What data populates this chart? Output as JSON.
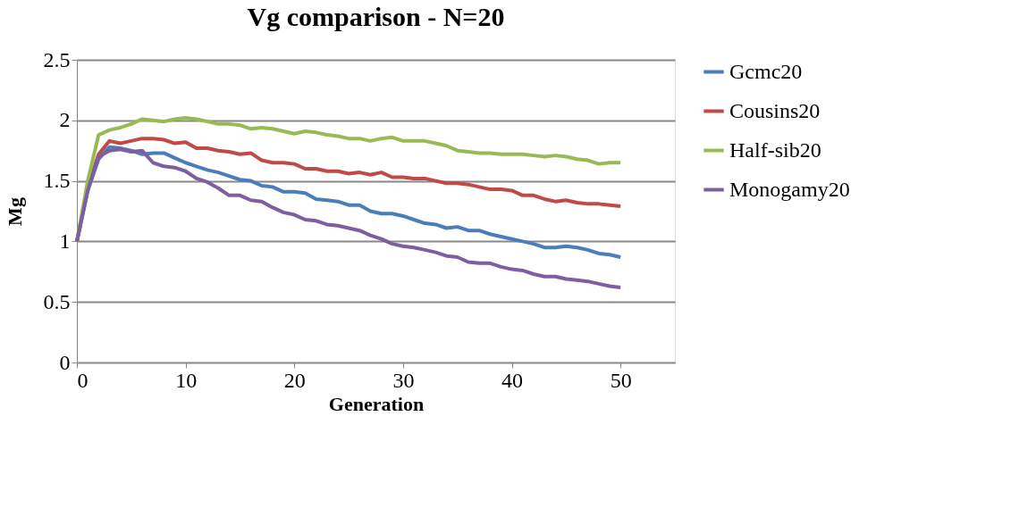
{
  "chart_data": {
    "type": "line",
    "title": "Vg comparison - N=20",
    "xlabel": "Generation",
    "ylabel": "Mg",
    "x": [
      0,
      1,
      2,
      3,
      4,
      5,
      6,
      7,
      8,
      9,
      10,
      11,
      12,
      13,
      14,
      15,
      16,
      17,
      18,
      19,
      20,
      21,
      22,
      23,
      24,
      25,
      26,
      27,
      28,
      29,
      30,
      31,
      32,
      33,
      34,
      35,
      36,
      37,
      38,
      39,
      40,
      41,
      42,
      43,
      44,
      45,
      46,
      47,
      48,
      49,
      50
    ],
    "xlim": [
      0,
      55
    ],
    "xticks": [
      0,
      10,
      20,
      30,
      40,
      50
    ],
    "ylim": [
      0,
      2.5
    ],
    "yticks": [
      0,
      0.5,
      1,
      1.5,
      2,
      2.5
    ],
    "grid": "y",
    "legend": "right",
    "line_style": "solid",
    "marker": "none",
    "series": [
      {
        "name": "Gcmc20",
        "color": "#4a7ebb",
        "values": [
          1,
          1.42,
          1.68,
          1.78,
          1.77,
          1.75,
          1.72,
          1.73,
          1.73,
          1.69,
          1.65,
          1.62,
          1.59,
          1.57,
          1.54,
          1.51,
          1.5,
          1.46,
          1.45,
          1.41,
          1.41,
          1.4,
          1.35,
          1.34,
          1.33,
          1.3,
          1.3,
          1.25,
          1.23,
          1.23,
          1.21,
          1.18,
          1.15,
          1.14,
          1.11,
          1.12,
          1.09,
          1.09,
          1.06,
          1.04,
          1.02,
          1.0,
          0.98,
          0.95,
          0.95,
          0.96,
          0.95,
          0.93,
          0.9,
          0.89,
          0.87
        ]
      },
      {
        "name": "Cousins20",
        "color": "#be4b48",
        "values": [
          1,
          1.45,
          1.72,
          1.83,
          1.81,
          1.83,
          1.85,
          1.85,
          1.84,
          1.81,
          1.82,
          1.77,
          1.77,
          1.75,
          1.74,
          1.72,
          1.73,
          1.67,
          1.65,
          1.65,
          1.64,
          1.6,
          1.6,
          1.58,
          1.58,
          1.56,
          1.57,
          1.55,
          1.57,
          1.53,
          1.53,
          1.52,
          1.52,
          1.5,
          1.48,
          1.48,
          1.47,
          1.45,
          1.43,
          1.43,
          1.42,
          1.38,
          1.38,
          1.35,
          1.33,
          1.34,
          1.32,
          1.31,
          1.31,
          1.3,
          1.29
        ]
      },
      {
        "name": "Half-sib20",
        "color": "#98b954",
        "values": [
          1,
          1.5,
          1.88,
          1.92,
          1.94,
          1.97,
          2.01,
          2.0,
          1.99,
          2.01,
          2.02,
          2.01,
          1.99,
          1.97,
          1.97,
          1.96,
          1.93,
          1.94,
          1.93,
          1.91,
          1.89,
          1.91,
          1.9,
          1.88,
          1.87,
          1.85,
          1.85,
          1.83,
          1.85,
          1.86,
          1.83,
          1.83,
          1.83,
          1.81,
          1.79,
          1.75,
          1.74,
          1.73,
          1.73,
          1.72,
          1.72,
          1.72,
          1.71,
          1.7,
          1.71,
          1.7,
          1.68,
          1.67,
          1.64,
          1.65,
          1.65
        ]
      },
      {
        "name": "Monogamy20",
        "color": "#7d5fa0",
        "values": [
          1,
          1.42,
          1.7,
          1.75,
          1.76,
          1.74,
          1.75,
          1.65,
          1.62,
          1.61,
          1.58,
          1.52,
          1.49,
          1.44,
          1.38,
          1.38,
          1.34,
          1.33,
          1.28,
          1.24,
          1.22,
          1.18,
          1.17,
          1.14,
          1.13,
          1.11,
          1.09,
          1.05,
          1.02,
          0.98,
          0.96,
          0.95,
          0.93,
          0.91,
          0.88,
          0.87,
          0.83,
          0.82,
          0.82,
          0.79,
          0.77,
          0.76,
          0.73,
          0.71,
          0.71,
          0.69,
          0.68,
          0.67,
          0.65,
          0.63,
          0.62
        ]
      }
    ]
  }
}
